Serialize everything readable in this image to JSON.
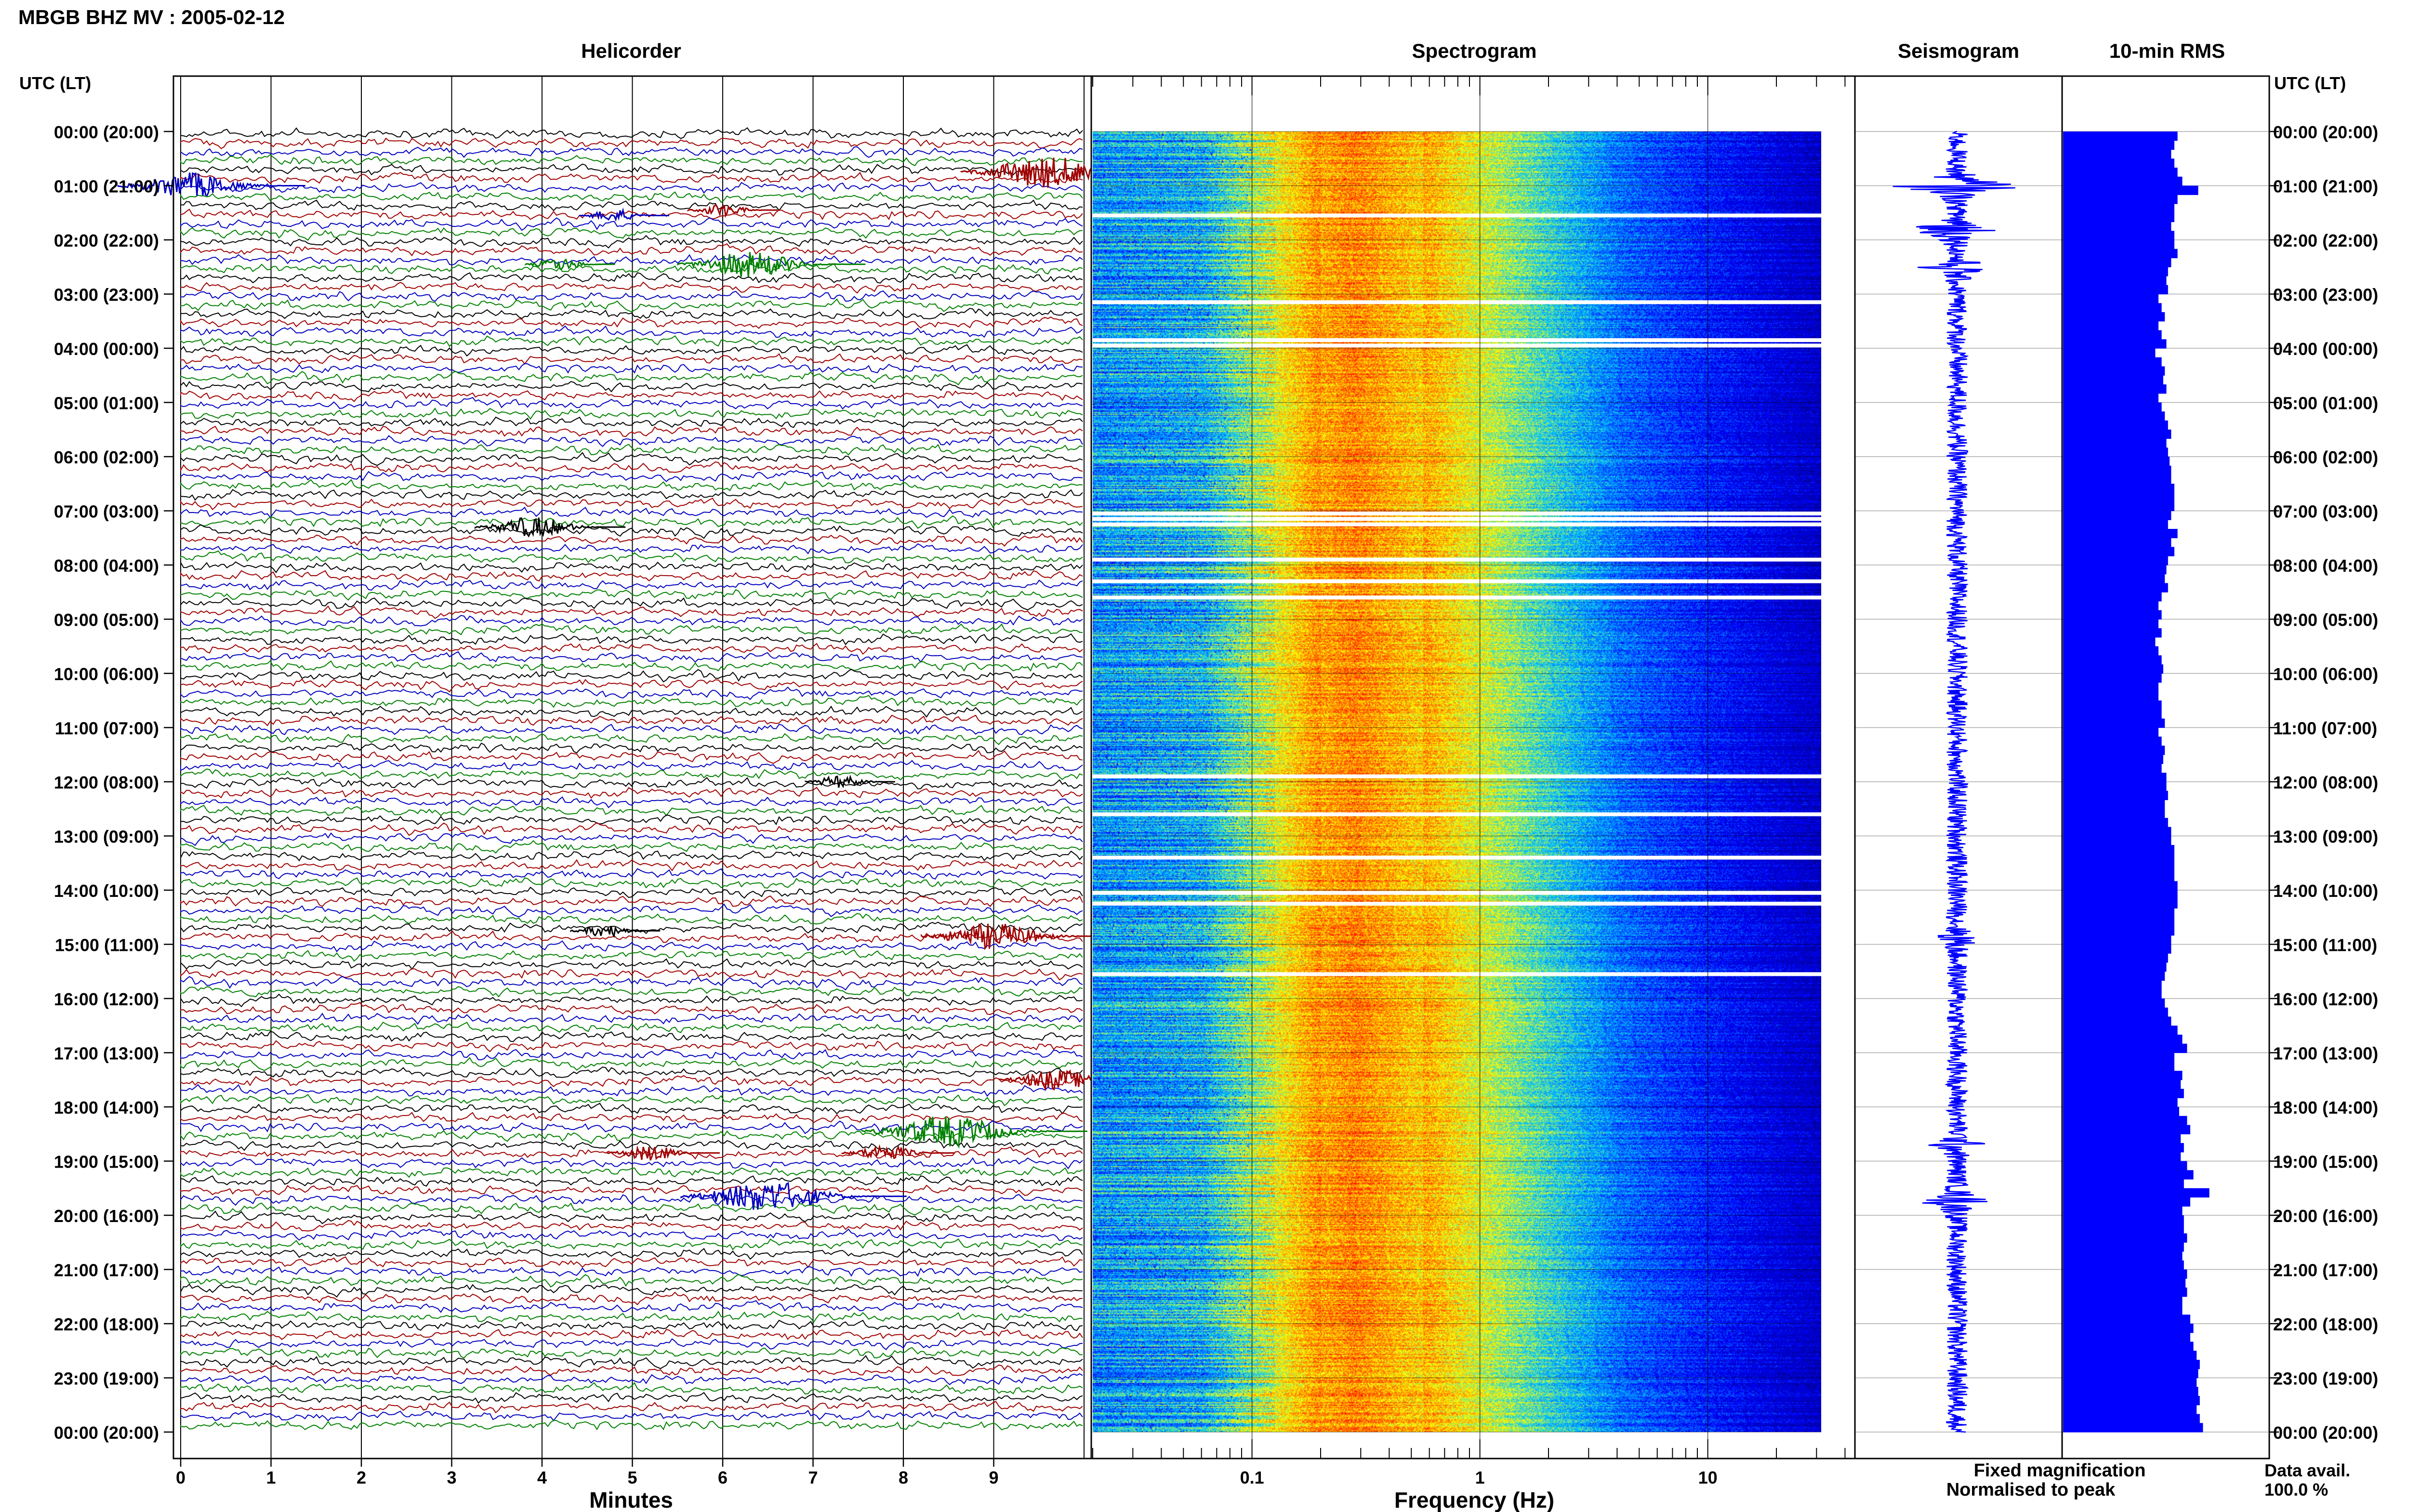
{
  "title": "MBGB BHZ MV : 2005-02-12",
  "time_header_left": "UTC (LT)",
  "time_header_right": "UTC (LT)",
  "panels": {
    "helicorder": "Helicorder",
    "spectrogram": "Spectrogram",
    "seismogram": "Seismogram",
    "rms": "10-min RMS"
  },
  "xlabels": {
    "helicorder": "Minutes",
    "spectrogram": "Frequency (Hz)"
  },
  "legend": {
    "fixed": "Fixed magnification",
    "normalised": "Normalised to peak",
    "fixed_color": "#0000ff",
    "normalised_color": "#ff0000"
  },
  "data_avail": {
    "label": "Data avail.",
    "value": "100.0 %"
  },
  "chart_data": {
    "type": "heatmap",
    "time_labels": [
      "00:00 (20:00)",
      "01:00 (21:00)",
      "02:00 (22:00)",
      "03:00 (23:00)",
      "04:00 (00:00)",
      "05:00 (01:00)",
      "06:00 (02:00)",
      "07:00 (03:00)",
      "08:00 (04:00)",
      "09:00 (05:00)",
      "10:00 (06:00)",
      "11:00 (07:00)",
      "12:00 (08:00)",
      "13:00 (09:00)",
      "14:00 (10:00)",
      "15:00 (11:00)",
      "16:00 (12:00)",
      "17:00 (13:00)",
      "18:00 (14:00)",
      "19:00 (15:00)",
      "20:00 (16:00)",
      "21:00 (17:00)",
      "22:00 (18:00)",
      "23:00 (19:00)",
      "00:00 (20:00)"
    ],
    "minute_ticks": [
      "0",
      "1",
      "2",
      "3",
      "4",
      "5",
      "6",
      "7",
      "8",
      "9"
    ],
    "freq_ticks": [
      {
        "value": 0.1,
        "label": "0.1"
      },
      {
        "value": 1,
        "label": "1"
      },
      {
        "value": 10,
        "label": "10"
      }
    ],
    "freq_range": [
      0.02,
      40
    ],
    "helicorder_colors": [
      "#000000",
      "#a00000",
      "#0000c0",
      "#008000"
    ],
    "spectrogram_colors": [
      "#000080",
      "#0000ff",
      "#00c8ff",
      "#ffff00",
      "#ff8000",
      "#ff0000"
    ],
    "spectrogram_gaps_hours": [
      1.55,
      3.15,
      3.85,
      3.95,
      7.05,
      7.15,
      7.25,
      7.9,
      8.3,
      8.6,
      11.9,
      12.6,
      13.4,
      14.05,
      14.25,
      15.55
    ],
    "helicorder_events": [
      {
        "hour": 0.75,
        "minute": 9.6,
        "color": "#a00000",
        "size": 3
      },
      {
        "hour": 1.0,
        "minute": 0.1,
        "color": "#0000c0",
        "size": 2.5
      },
      {
        "hour": 1.45,
        "minute": 6.0,
        "color": "#a00000",
        "size": 1.2
      },
      {
        "hour": 1.55,
        "minute": 4.8,
        "color": "#0000c0",
        "size": 1.2
      },
      {
        "hour": 2.45,
        "minute": 6.3,
        "color": "#008000",
        "size": 2.5
      },
      {
        "hour": 2.45,
        "minute": 4.2,
        "color": "#008000",
        "size": 1.2
      },
      {
        "hour": 7.3,
        "minute": 3.9,
        "color": "#000000",
        "size": 2
      },
      {
        "hour": 14.75,
        "minute": 4.7,
        "color": "#000000",
        "size": 1.2
      },
      {
        "hour": 14.85,
        "minute": 9.0,
        "color": "#a00000",
        "size": 2.5
      },
      {
        "hour": 17.5,
        "minute": 9.7,
        "color": "#a00000",
        "size": 2
      },
      {
        "hour": 18.45,
        "minute": 8.5,
        "color": "#008000",
        "size": 3
      },
      {
        "hour": 18.85,
        "minute": 5.2,
        "color": "#a00000",
        "size": 1.5
      },
      {
        "hour": 18.85,
        "minute": 7.8,
        "color": "#a00000",
        "size": 1.5
      },
      {
        "hour": 19.65,
        "minute": 6.5,
        "color": "#0000c0",
        "size": 3
      },
      {
        "hour": 12.0,
        "minute": 7.3,
        "color": "#000000",
        "size": 1.2
      }
    ],
    "seismogram_peaks": [
      {
        "hour": 1.0,
        "amp": 1.0
      },
      {
        "hour": 1.8,
        "amp": 0.9
      },
      {
        "hour": 2.5,
        "amp": 0.45
      },
      {
        "hour": 19.75,
        "amp": 0.45
      },
      {
        "hour": 18.7,
        "amp": 0.3
      },
      {
        "hour": 14.9,
        "amp": 0.25
      }
    ],
    "rms_values": [
      0.72,
      0.7,
      0.68,
      0.7,
      0.72,
      0.75,
      0.85,
      0.72,
      0.7,
      0.7,
      0.68,
      0.7,
      0.7,
      0.72,
      0.68,
      0.66,
      0.65,
      0.66,
      0.6,
      0.62,
      0.64,
      0.6,
      0.62,
      0.65,
      0.58,
      0.62,
      0.64,
      0.63,
      0.65,
      0.6,
      0.62,
      0.64,
      0.66,
      0.68,
      0.65,
      0.66,
      0.67,
      0.68,
      0.68,
      0.7,
      0.7,
      0.7,
      0.68,
      0.66,
      0.72,
      0.68,
      0.7,
      0.66,
      0.65,
      0.64,
      0.66,
      0.62,
      0.6,
      0.62,
      0.6,
      0.62,
      0.58,
      0.6,
      0.62,
      0.63,
      0.62,
      0.6,
      0.6,
      0.62,
      0.62,
      0.64,
      0.6,
      0.62,
      0.64,
      0.63,
      0.62,
      0.65,
      0.65,
      0.66,
      0.64,
      0.64,
      0.66,
      0.68,
      0.68,
      0.7,
      0.7,
      0.7,
      0.7,
      0.72,
      0.72,
      0.72,
      0.7,
      0.7,
      0.7,
      0.68,
      0.68,
      0.66,
      0.65,
      0.64,
      0.62,
      0.62,
      0.64,
      0.66,
      0.68,
      0.72,
      0.75,
      0.78,
      0.7,
      0.7,
      0.75,
      0.74,
      0.76,
      0.72,
      0.73,
      0.78,
      0.8,
      0.74,
      0.76,
      0.74,
      0.78,
      0.82,
      0.76,
      0.92,
      0.8,
      0.75,
      0.76,
      0.76,
      0.78,
      0.76,
      0.75,
      0.76,
      0.78,
      0.77,
      0.78,
      0.75,
      0.75,
      0.8,
      0.82,
      0.8,
      0.82,
      0.84,
      0.86,
      0.85,
      0.84,
      0.85,
      0.86,
      0.84,
      0.86,
      0.88
    ]
  }
}
